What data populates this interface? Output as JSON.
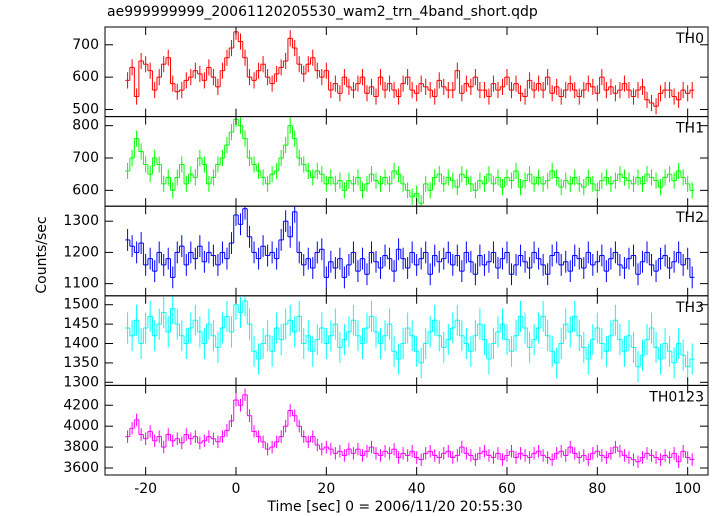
{
  "chart_data": {
    "type": "step",
    "title": "ae999999999_20061120205530_wam2_trn_4band_short.qdp",
    "xlabel": "Time [sec] 0 = 2006/11/20 20:55:30",
    "ylabel": "Counts/sec",
    "xlim": [
      -29,
      104.5
    ],
    "xticks": [
      -20,
      0,
      20,
      40,
      60,
      80,
      100
    ],
    "x": [
      -24,
      -23,
      -22,
      -21,
      -20,
      -19,
      -18,
      -17,
      -16,
      -15,
      -14,
      -13,
      -12,
      -11,
      -10,
      -9,
      -8,
      -7,
      -6,
      -5,
      -4,
      -3,
      -2,
      -1,
      0,
      1,
      2,
      3,
      4,
      5,
      6,
      7,
      8,
      9,
      10,
      11,
      12,
      13,
      14,
      15,
      16,
      17,
      18,
      19,
      20,
      21,
      22,
      23,
      24,
      25,
      26,
      27,
      28,
      29,
      30,
      31,
      32,
      33,
      34,
      35,
      36,
      37,
      38,
      39,
      40,
      41,
      42,
      43,
      44,
      45,
      46,
      47,
      48,
      49,
      50,
      51,
      52,
      53,
      54,
      55,
      56,
      57,
      58,
      59,
      60,
      61,
      62,
      63,
      64,
      65,
      66,
      67,
      68,
      69,
      70,
      71,
      72,
      73,
      74,
      75,
      76,
      77,
      78,
      79,
      80,
      81,
      82,
      83,
      84,
      85,
      86,
      87,
      88,
      89,
      90,
      91,
      92,
      93,
      94,
      95,
      96,
      97,
      98,
      99,
      100,
      101
    ],
    "series": [
      {
        "name": "TH0",
        "color": "#ff0000",
        "error": 25,
        "ylim": [
          478,
          755
        ],
        "yticks": [
          500,
          600,
          700
        ],
        "values": [
          590,
          630,
          540,
          650,
          640,
          620,
          560,
          600,
          640,
          660,
          580,
          555,
          560,
          590,
          600,
          620,
          610,
          590,
          630,
          600,
          570,
          620,
          660,
          690,
          740,
          710,
          660,
          600,
          590,
          620,
          640,
          600,
          580,
          610,
          630,
          650,
          720,
          690,
          640,
          610,
          640,
          660,
          620,
          600,
          620,
          560,
          580,
          550,
          600,
          570,
          560,
          580,
          600,
          550,
          570,
          540,
          600,
          560,
          580,
          560,
          540,
          580,
          600,
          560,
          550,
          580,
          570,
          560,
          540,
          590,
          570,
          560,
          560,
          620,
          550,
          580,
          570,
          600,
          560,
          560,
          540,
          580,
          560,
          570,
          600,
          560,
          580,
          550,
          540,
          590,
          560,
          580,
          560,
          600,
          550,
          570,
          540,
          560,
          580,
          560,
          540,
          560,
          580,
          570,
          550,
          600,
          560,
          570,
          550,
          560,
          580,
          560,
          540,
          560,
          570,
          530,
          520,
          510,
          550,
          560,
          560,
          540,
          530,
          560,
          550,
          560
        ]
      },
      {
        "name": "TH1",
        "color": "#00ff00",
        "error": 25,
        "ylim": [
          551,
          828
        ],
        "yticks": [
          600,
          700,
          800
        ],
        "values": [
          660,
          700,
          760,
          720,
          680,
          650,
          700,
          680,
          620,
          640,
          600,
          640,
          680,
          620,
          650,
          640,
          700,
          680,
          620,
          640,
          680,
          700,
          740,
          780,
          820,
          800,
          760,
          700,
          680,
          660,
          640,
          620,
          650,
          660,
          700,
          740,
          800,
          760,
          700,
          680,
          660,
          640,
          660,
          650,
          620,
          640,
          620,
          630,
          600,
          630,
          620,
          640,
          600,
          620,
          650,
          630,
          620,
          640,
          620,
          660,
          650,
          620,
          600,
          580,
          590,
          560,
          620,
          600,
          640,
          650,
          620,
          640,
          630,
          610,
          650,
          640,
          620,
          600,
          630,
          620,
          650,
          620,
          640,
          610,
          640,
          630,
          660,
          610,
          630,
          650,
          620,
          640,
          620,
          630,
          660,
          640,
          610,
          630,
          620,
          640,
          620,
          610,
          640,
          620,
          600,
          630,
          640,
          620,
          630,
          650,
          640,
          630,
          620,
          640,
          620,
          650,
          640,
          630,
          610,
          640,
          650,
          630,
          660,
          640,
          620,
          600
        ]
      },
      {
        "name": "TH2",
        "color": "#0000ff",
        "error": 35,
        "ylim": [
          1061,
          1348
        ],
        "yticks": [
          1100,
          1200,
          1300
        ],
        "values": [
          1240,
          1220,
          1200,
          1230,
          1160,
          1180,
          1140,
          1200,
          1160,
          1180,
          1120,
          1200,
          1220,
          1160,
          1200,
          1180,
          1220,
          1170,
          1200,
          1190,
          1160,
          1200,
          1180,
          1230,
          1320,
          1290,
          1340,
          1250,
          1200,
          1180,
          1220,
          1190,
          1200,
          1180,
          1240,
          1300,
          1250,
          1330,
          1200,
          1160,
          1180,
          1150,
          1200,
          1210,
          1120,
          1170,
          1150,
          1180,
          1120,
          1160,
          1200,
          1140,
          1180,
          1130,
          1200,
          1170,
          1150,
          1190,
          1180,
          1140,
          1210,
          1180,
          1150,
          1200,
          1160,
          1180,
          1200,
          1130,
          1190,
          1170,
          1180,
          1200,
          1160,
          1190,
          1140,
          1200,
          1170,
          1130,
          1190,
          1160,
          1170,
          1200,
          1150,
          1180,
          1200,
          1130,
          1160,
          1190,
          1170,
          1150,
          1200,
          1180,
          1160,
          1130,
          1190,
          1200,
          1160,
          1170,
          1140,
          1190,
          1180,
          1150,
          1200,
          1160,
          1170,
          1190,
          1140,
          1180,
          1200,
          1160,
          1150,
          1180,
          1190,
          1130,
          1170,
          1200,
          1160,
          1140,
          1180,
          1190,
          1150,
          1170,
          1200,
          1160,
          1180,
          1120
        ]
      },
      {
        "name": "TH3",
        "color": "#00ffff",
        "error": 40,
        "ylim": [
          1292,
          1523
        ],
        "yticks": [
          1300,
          1350,
          1400,
          1450,
          1500
        ],
        "values": [
          1440,
          1420,
          1460,
          1400,
          1440,
          1470,
          1420,
          1450,
          1480,
          1430,
          1490,
          1450,
          1420,
          1400,
          1440,
          1460,
          1430,
          1400,
          1450,
          1420,
          1390,
          1440,
          1470,
          1430,
          1500,
          1480,
          1510,
          1450,
          1380,
          1360,
          1400,
          1420,
          1380,
          1440,
          1410,
          1450,
          1460,
          1430,
          1470,
          1400,
          1420,
          1380,
          1410,
          1440,
          1400,
          1420,
          1450,
          1390,
          1410,
          1430,
          1460,
          1420,
          1400,
          1440,
          1470,
          1430,
          1400,
          1420,
          1450,
          1380,
          1360,
          1400,
          1440,
          1420,
          1380,
          1350,
          1400,
          1430,
          1460,
          1420,
          1390,
          1410,
          1440,
          1460,
          1420,
          1400,
          1380,
          1420,
          1450,
          1410,
          1360,
          1400,
          1430,
          1450,
          1410,
          1380,
          1420,
          1470,
          1440,
          1390,
          1410,
          1440,
          1470,
          1420,
          1380,
          1350,
          1400,
          1450,
          1430,
          1470,
          1420,
          1390,
          1360,
          1410,
          1440,
          1400,
          1380,
          1420,
          1460,
          1410,
          1380,
          1420,
          1390,
          1340,
          1370,
          1410,
          1440,
          1390,
          1360,
          1400,
          1380,
          1350,
          1400,
          1370,
          1340,
          1360
        ]
      },
      {
        "name": "TH0123",
        "color": "#ff00ff",
        "error": 60,
        "ylim": [
          3533,
          4390
        ],
        "yticks": [
          3600,
          3800,
          4000,
          4200
        ],
        "values": [
          3900,
          3980,
          4060,
          3920,
          3880,
          3950,
          3860,
          3900,
          3800,
          3920,
          3860,
          3880,
          3840,
          3920,
          3880,
          3900,
          3840,
          3860,
          3900,
          3880,
          3850,
          3900,
          3960,
          4050,
          4250,
          4200,
          4300,
          4100,
          3950,
          3900,
          3850,
          3780,
          3800,
          3850,
          3900,
          4000,
          4150,
          4100,
          4000,
          3900,
          3850,
          3900,
          3820,
          3780,
          3800,
          3780,
          3740,
          3760,
          3720,
          3780,
          3740,
          3780,
          3720,
          3760,
          3800,
          3740,
          3720,
          3760,
          3740,
          3780,
          3700,
          3740,
          3720,
          3760,
          3700,
          3680,
          3740,
          3760,
          3720,
          3700,
          3740,
          3760,
          3700,
          3720,
          3800,
          3740,
          3720,
          3680,
          3740,
          3760,
          3720,
          3700,
          3740,
          3680,
          3720,
          3760,
          3700,
          3740,
          3720,
          3700,
          3740,
          3760,
          3720,
          3700,
          3680,
          3740,
          3760,
          3720,
          3800,
          3740,
          3700,
          3720,
          3680,
          3740,
          3760,
          3720,
          3700,
          3740,
          3800,
          3760,
          3720,
          3700,
          3680,
          3660,
          3700,
          3740,
          3720,
          3700,
          3680,
          3720,
          3700,
          3740,
          3660,
          3760,
          3700,
          3680
        ]
      }
    ]
  }
}
